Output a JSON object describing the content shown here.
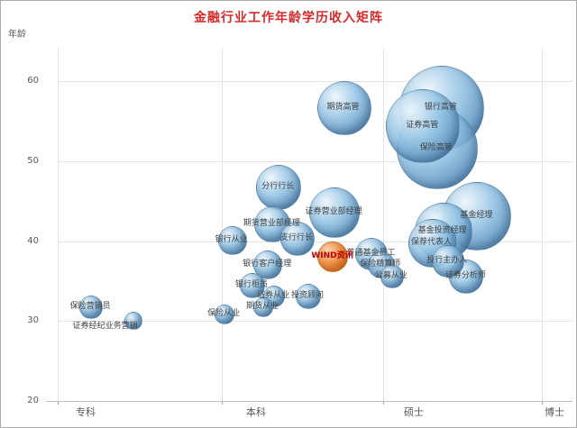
{
  "title": "金融行业工作年龄学历收入矩阵",
  "axes": {
    "y_label": "年龄",
    "y_ticks": [
      60,
      50,
      40,
      30,
      20
    ],
    "x_labels": [
      "专科",
      "本科",
      "硕士",
      "博士"
    ]
  },
  "watermark_label": "WIND资讯",
  "colors": {
    "title": "#d62a2a",
    "axis_text": "#595959",
    "gridline": "#e3e3e3",
    "label": "#404040",
    "wind_red": "#c00000",
    "bubble_blue": "#76abd4",
    "bubble_blue_dark": "#3a6894",
    "bubble_orange": "#e8801e"
  },
  "chart_data": {
    "type": "scatter",
    "subtype": "bubble",
    "title": "金融行业工作年龄学历收入矩阵",
    "ylabel": "年龄",
    "ylim": [
      20,
      60
    ],
    "x_categories": [
      "专科",
      "本科",
      "硕士",
      "博士"
    ],
    "x_note": "x in education-category units: 1=专科 2=本科 3=硕士 4=博士",
    "r_note": "r = bubble radius in px (bubble size encodes income)",
    "grid": true,
    "points": [
      {
        "label": "银行高管",
        "x": 3.29,
        "y": 56.7,
        "r": 46
      },
      {
        "label": "证券高管",
        "x": 3.17,
        "y": 54.5,
        "r": 40
      },
      {
        "label": "保险高管",
        "x": 3.26,
        "y": 51.7,
        "r": 44
      },
      {
        "label": "期货高管",
        "x": 2.66,
        "y": 56.7,
        "r": 29
      },
      {
        "label": "分行行长",
        "x": 2.24,
        "y": 46.8,
        "r": 24
      },
      {
        "label": "证券营业部经理",
        "x": 2.6,
        "y": 43.7,
        "r": 27
      },
      {
        "label": "基金经理",
        "x": 3.52,
        "y": 43.2,
        "r": 37
      },
      {
        "label": "期货营业部经理",
        "x": 2.2,
        "y": 42.2,
        "r": 19
      },
      {
        "label": "基金投资经理",
        "x": 3.3,
        "y": 41.3,
        "r": 31
      },
      {
        "label": "支行行长",
        "x": 2.36,
        "y": 40.4,
        "r": 18
      },
      {
        "label": "银行从业",
        "x": 1.94,
        "y": 40.2,
        "r": 15
      },
      {
        "label": "保荐代表人",
        "x": 3.23,
        "y": 39.8,
        "r": 26
      },
      {
        "label": "普通基金员工",
        "x": 2.84,
        "y": 38.5,
        "r": 17
      },
      {
        "label": "WIND资讯",
        "x": 2.59,
        "y": 38.1,
        "r": 16,
        "variant": "orange"
      },
      {
        "label": "投行主办人",
        "x": 3.33,
        "y": 37.6,
        "r": 17
      },
      {
        "label": "保险精算师",
        "x": 2.9,
        "y": 37.1,
        "r": 14
      },
      {
        "label": "银行客户经理",
        "x": 2.17,
        "y": 37.1,
        "r": 15
      },
      {
        "label": "公募从业",
        "x": 2.97,
        "y": 35.7,
        "r": 12
      },
      {
        "label": "证券分析师",
        "x": 3.45,
        "y": 35.7,
        "r": 18
      },
      {
        "label": "银行柜员",
        "x": 2.07,
        "y": 34.5,
        "r": 13
      },
      {
        "label": "证券从业",
        "x": 2.21,
        "y": 33.2,
        "r": 11
      },
      {
        "label": "投资顾问",
        "x": 2.43,
        "y": 33.2,
        "r": 13
      },
      {
        "label": "期货从业",
        "x": 2.14,
        "y": 31.8,
        "r": 10
      },
      {
        "label": "保险从业",
        "x": 1.89,
        "y": 30.9,
        "r": 10
      },
      {
        "label": "保险营销员",
        "x": 1.03,
        "y": 31.8,
        "r": 12
      },
      {
        "label": "证券经纪业务营销",
        "x": 1.3,
        "y": 30.1,
        "r": 9,
        "label_dx": -30,
        "label_dy": 7
      }
    ]
  }
}
